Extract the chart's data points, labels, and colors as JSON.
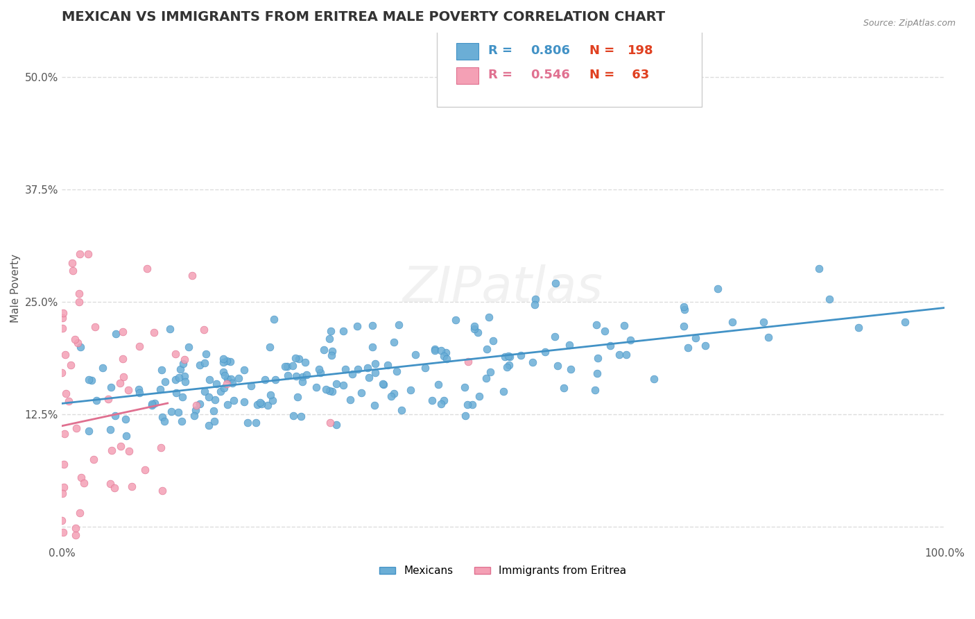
{
  "title": "MEXICAN VS IMMIGRANTS FROM ERITREA MALE POVERTY CORRELATION CHART",
  "source": "Source: ZipAtlas.com",
  "xlabel": "",
  "ylabel": "Male Poverty",
  "watermark": "ZIPatlas",
  "legend_blue_R": "R = 0.806",
  "legend_blue_N": "N = 198",
  "legend_pink_R": "R = 0.546",
  "legend_pink_N": "N =  63",
  "legend_label1": "Mexicans",
  "legend_label2": "Immigrants from Eritrea",
  "blue_color": "#6baed6",
  "pink_color": "#f4a0b5",
  "blue_line_color": "#4292c6",
  "pink_line_color": "#e07090",
  "blue_legend_color": "#4da6e8",
  "pink_legend_color": "#f08080",
  "title_color": "#333333",
  "R_color_blue": "#4292c6",
  "R_color_pink": "#e07090",
  "N_color_blue": "#e04020",
  "N_color_pink": "#e04020",
  "xlim": [
    0.0,
    1.0
  ],
  "ylim": [
    -0.02,
    0.55
  ],
  "xtick_labels": [
    "0.0%",
    "100.0%"
  ],
  "ytick_labels": [
    "12.5%",
    "25.0%",
    "37.5%",
    "50.0%"
  ],
  "ytick_values": [
    0.125,
    0.25,
    0.375,
    0.5
  ],
  "grid_color": "#dddddd",
  "background_color": "#ffffff",
  "title_fontsize": 14,
  "axis_fontsize": 11,
  "tick_fontsize": 11,
  "blue_scatter_seed": 42,
  "pink_scatter_seed": 99,
  "blue_N": 198,
  "pink_N": 63,
  "blue_R": 0.806,
  "pink_R": 0.546
}
